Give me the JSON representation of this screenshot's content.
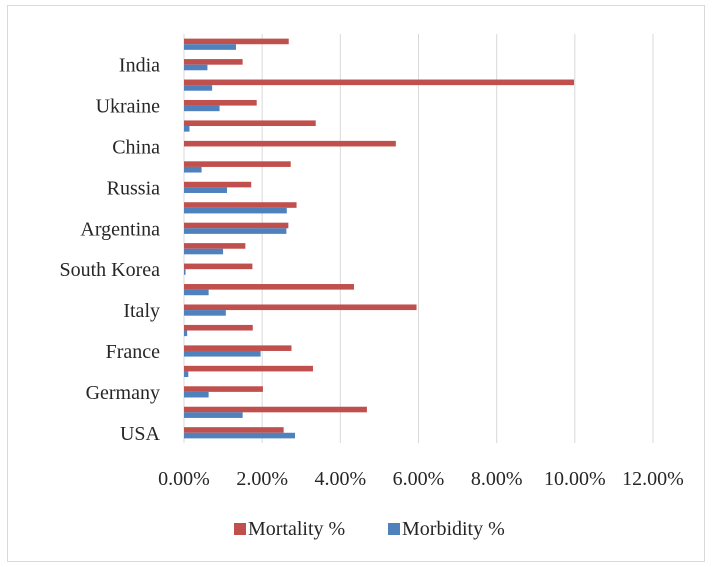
{
  "chart_data": {
    "type": "bar",
    "orientation": "horizontal",
    "categories": [
      "USA",
      "",
      "Germany",
      "",
      "France",
      "",
      "Italy",
      "",
      "South Korea",
      "",
      "Argentina",
      "",
      "Russia",
      "",
      "China",
      "",
      "Ukraine",
      "",
      "India",
      ""
    ],
    "series": [
      {
        "name": "Mortality %",
        "color": "#c0504d",
        "values": [
          2.55,
          4.68,
          2.02,
          3.3,
          2.75,
          1.76,
          5.95,
          4.35,
          1.75,
          1.57,
          2.67,
          2.88,
          1.72,
          2.73,
          5.42,
          3.37,
          1.86,
          9.98,
          1.5,
          2.68
        ]
      },
      {
        "name": "Morbidity %",
        "color": "#4f81bd",
        "values": [
          2.84,
          1.5,
          0.63,
          0.11,
          1.96,
          0.08,
          1.07,
          0.63,
          0.04,
          1.0,
          2.62,
          2.63,
          1.1,
          0.45,
          0.0,
          0.14,
          0.91,
          0.72,
          0.6,
          1.33
        ]
      }
    ],
    "xlim": [
      0,
      12
    ],
    "xticks": [
      "0.00%",
      "2.00%",
      "4.00%",
      "6.00%",
      "8.00%",
      "10.00%",
      "12.00%"
    ],
    "title": "",
    "xlabel": "",
    "ylabel": "",
    "grid": "vertical",
    "legend_position": "bottom"
  }
}
